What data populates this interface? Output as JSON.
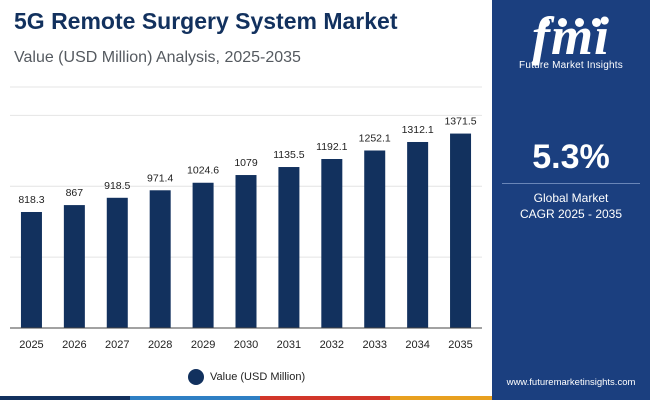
{
  "header": {
    "title": "5G Remote Surgery System Market",
    "subtitle": "Value (USD Million) Analysis, 2025-2035"
  },
  "chart_data": {
    "type": "bar",
    "categories": [
      "2025",
      "2026",
      "2027",
      "2028",
      "2029",
      "2030",
      "2031",
      "2032",
      "2033",
      "2034",
      "2035"
    ],
    "series": [
      {
        "name": "Value (USD Million)",
        "values": [
          818.3,
          867,
          918.5,
          971.4,
          1024.6,
          1079,
          1135.5,
          1192.1,
          1252.1,
          1312.1,
          1371.5
        ],
        "labels": [
          "818.3",
          "867",
          "918.5",
          "971.4",
          "1024.6",
          "1079",
          "1135.5",
          "1192.1",
          "1252.1",
          "1312.1",
          "1371.5"
        ],
        "color": "#12315e"
      }
    ],
    "ylim": [
      0,
      1700
    ],
    "grid": true,
    "legend_position": "bottom"
  },
  "sidebar": {
    "logo_mark": "fmi",
    "logo_text": "Future Market Insights",
    "cagr_value": "5.3%",
    "cagr_label_line1": "Global Market",
    "cagr_label_line2": "CAGR 2025 - 2035",
    "website": "www.futuremarketinsights.com"
  },
  "colors": {
    "title": "#12315e",
    "bar": "#12315e",
    "sidebar_bg": "#1b3f7f",
    "grid": "#e4e4e4",
    "strip": [
      "#12315e",
      "#2e7fc4",
      "#d2362a",
      "#e8a020",
      "#6b3fa0"
    ]
  }
}
